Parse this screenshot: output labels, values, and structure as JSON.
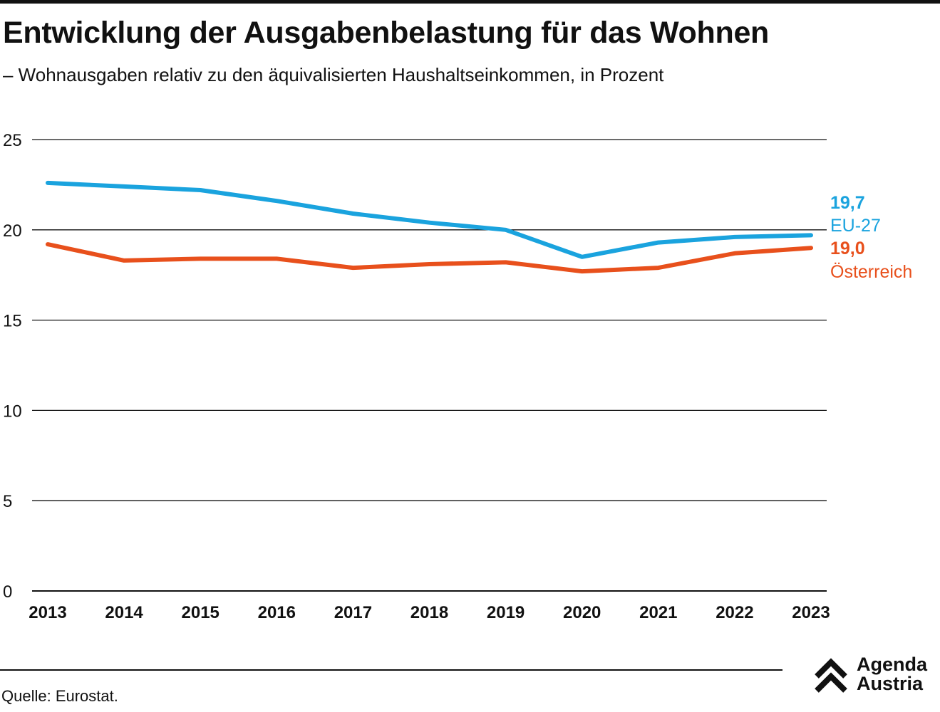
{
  "header": {
    "title": "Entwicklung der Ausgabenbelastung für das Wohnen",
    "subtitle": "– Wohnausgaben relativ zu den äquivalisierten Haushaltseinkommen, in Prozent"
  },
  "chart_data": {
    "type": "line",
    "title": "Entwicklung der Ausgabenbelastung für das Wohnen",
    "subtitle": "– Wohnausgaben relativ zu den äquivalisierten Haushaltseinkommen, in Prozent",
    "x": [
      "2013",
      "2014",
      "2015",
      "2016",
      "2017",
      "2018",
      "2019",
      "2020",
      "2021",
      "2022",
      "2023"
    ],
    "ylim": [
      0,
      25
    ],
    "yticks": [
      "0",
      "5",
      "10",
      "15",
      "20",
      "25"
    ],
    "grid": true,
    "series": [
      {
        "name": "EU-27",
        "color": "#1aa3de",
        "values": [
          22.6,
          22.4,
          22.2,
          21.6,
          20.9,
          20.4,
          20.0,
          18.5,
          19.3,
          19.6,
          19.7
        ],
        "end_label": "19,7"
      },
      {
        "name": "Österreich",
        "color": "#e8501c",
        "values": [
          19.2,
          18.3,
          18.4,
          18.4,
          17.9,
          18.1,
          18.2,
          17.7,
          17.9,
          18.7,
          19.0
        ],
        "end_label": "19,0"
      }
    ]
  },
  "footer": {
    "source": "Quelle: Eurostat.",
    "logo_line1": "Agenda",
    "logo_line2": "Austria"
  }
}
